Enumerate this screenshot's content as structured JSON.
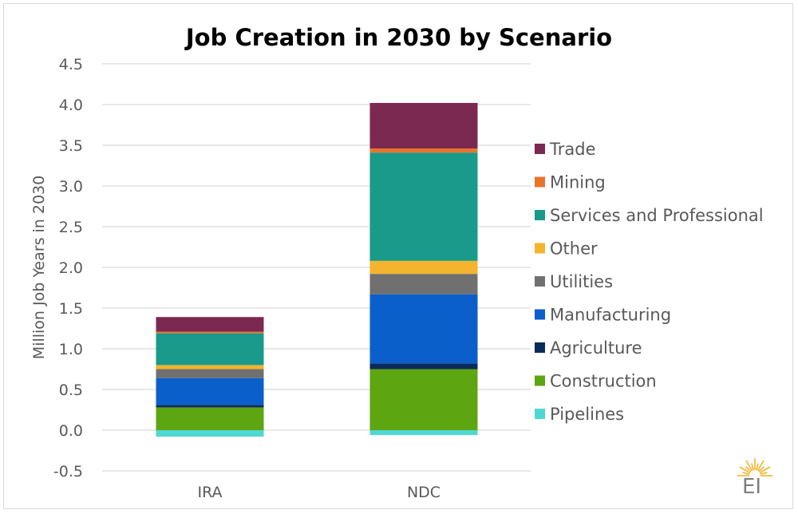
{
  "chart_data": {
    "type": "bar",
    "stacked": true,
    "title": "Job Creation in 2030 by Scenario",
    "xlabel": "",
    "ylabel": "Million Job Years in 2030",
    "ylim": [
      -0.5,
      4.5
    ],
    "yticks": [
      "4.5",
      "4.0",
      "3.5",
      "3.0",
      "2.5",
      "2.0",
      "1.5",
      "1.0",
      "0.5",
      "0.0",
      "-0.5"
    ],
    "ytick_values": [
      4.5,
      4.0,
      3.5,
      3.0,
      2.5,
      2.0,
      1.5,
      1.0,
      0.5,
      0.0,
      -0.5
    ],
    "categories": [
      "IRA",
      "NDC"
    ],
    "grid": true,
    "legend_position": "right",
    "series": [
      {
        "name": "Pipelines",
        "color": "#4fd8d2",
        "values": [
          -0.08,
          -0.06
        ]
      },
      {
        "name": "Construction",
        "color": "#5ea512",
        "values": [
          0.28,
          0.75
        ]
      },
      {
        "name": "Agriculture",
        "color": "#0b2b5c",
        "values": [
          0.03,
          0.07
        ]
      },
      {
        "name": "Manufacturing",
        "color": "#0a5fca",
        "values": [
          0.33,
          0.85
        ]
      },
      {
        "name": "Utilities",
        "color": "#707070",
        "values": [
          0.11,
          0.25
        ]
      },
      {
        "name": "Other",
        "color": "#f4b42e",
        "values": [
          0.05,
          0.16
        ]
      },
      {
        "name": "Services and Professional",
        "color": "#1a9a8a",
        "values": [
          0.39,
          1.33
        ]
      },
      {
        "name": "Mining",
        "color": "#e8742c",
        "values": [
          0.02,
          0.05
        ]
      },
      {
        "name": "Trade",
        "color": "#7b2950",
        "values": [
          0.18,
          0.56
        ]
      }
    ],
    "legend_order": [
      "Trade",
      "Mining",
      "Services and Professional",
      "Other",
      "Utilities",
      "Manufacturing",
      "Agriculture",
      "Construction",
      "Pipelines"
    ]
  },
  "logo": {
    "text": "EI",
    "color": "#f4b42e"
  }
}
